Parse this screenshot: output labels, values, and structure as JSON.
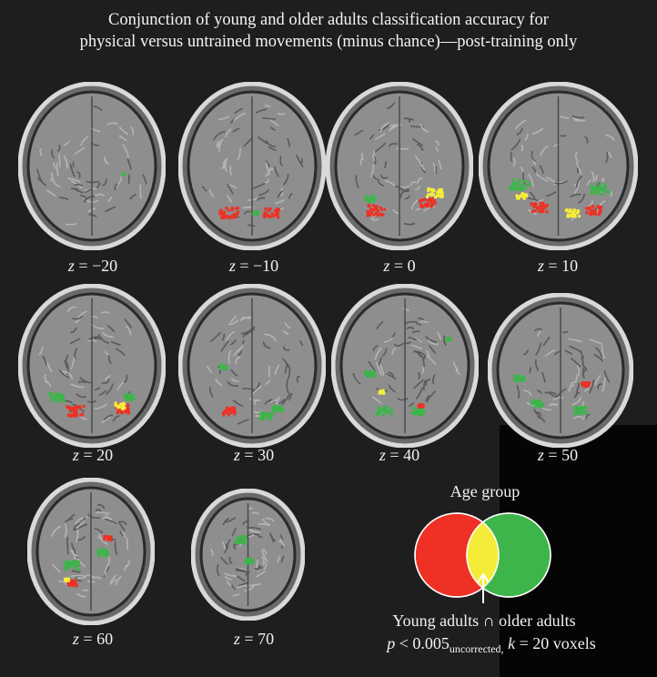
{
  "figure": {
    "title_line1": "Conjunction of young and older adults classification accuracy for",
    "title_line2": "physical versus untrained movements (minus chance)—post-training only"
  },
  "slices": [
    {
      "label_prefix": "z",
      "label_value": "= −20"
    },
    {
      "label_prefix": "z",
      "label_value": "= −10"
    },
    {
      "label_prefix": "z",
      "label_value": "= 0"
    },
    {
      "label_prefix": "z",
      "label_value": "= 10"
    },
    {
      "label_prefix": "z",
      "label_value": "= 20"
    },
    {
      "label_prefix": "z",
      "label_value": "= 30"
    },
    {
      "label_prefix": "z",
      "label_value": "= 40"
    },
    {
      "label_prefix": "z",
      "label_value": "= 50"
    },
    {
      "label_prefix": "z",
      "label_value": "= 60"
    },
    {
      "label_prefix": "z",
      "label_value": "= 70"
    }
  ],
  "legend": {
    "title": "Age group",
    "conjunction_label": "Young adults ∩ older adults",
    "stats_p": "p",
    "stats_threshold": " < 0.005",
    "stats_sub": "uncorrected,",
    "stats_k": "k",
    "stats_rest": " = 20 voxels",
    "colors": {
      "young": "#ee3124",
      "older": "#3db54a",
      "overlap": "#f5ec3a"
    }
  }
}
